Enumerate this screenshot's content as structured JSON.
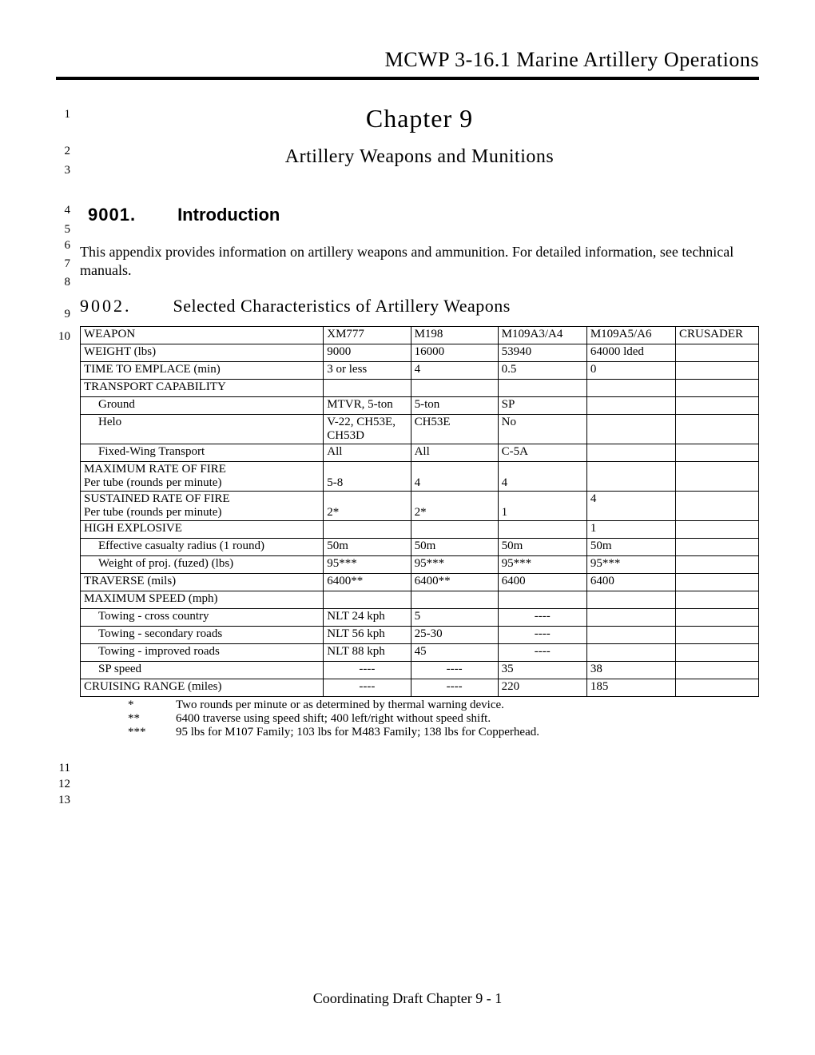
{
  "header": "MCWP 3-16.1 Marine Artillery Operations",
  "chapter_title": "Chapter 9",
  "chapter_subtitle": "Artillery Weapons and Munitions",
  "section1": {
    "num": "9001.",
    "title": "Introduction"
  },
  "intro_text": "This appendix provides information on artillery weapons and ammunition.  For detailed information, see technical manuals.",
  "section2": {
    "num": "9002.",
    "title": "Selected Characteristics of Artillery Weapons"
  },
  "line_nums": [
    "1",
    "2",
    "3",
    "4",
    "5",
    "6",
    "7",
    "8",
    "9",
    "10",
    "11",
    "12",
    "13"
  ],
  "table": {
    "columns": [
      "WEAPON",
      "XM777",
      "M198",
      "M109A3/A4",
      "M109A5/A6",
      "CRUSADER"
    ],
    "rows": [
      {
        "label": "WEIGHT (lbs)",
        "cells": [
          "9000",
          "16000",
          "53940",
          "64000 lded",
          ""
        ]
      },
      {
        "label": "TIME TO EMPLACE (min)",
        "cells": [
          "3 or less",
          "4",
          "0.5",
          "0",
          ""
        ]
      },
      {
        "label": "TRANSPORT CAPABILITY",
        "cells": [
          "",
          "",
          "",
          "",
          ""
        ]
      },
      {
        "label": "Ground",
        "indent": 1,
        "cells": [
          "MTVR, 5-ton",
          "5-ton",
          "SP",
          "",
          ""
        ]
      },
      {
        "label": "Helo",
        "indent": 1,
        "cells": [
          "V-22, CH53E, CH53D",
          "CH53E",
          "No",
          "",
          ""
        ]
      },
      {
        "label": "Fixed-Wing Transport",
        "indent": 1,
        "cells": [
          "All",
          "All",
          "C-5A",
          "",
          ""
        ]
      },
      {
        "label": "MAXIMUM RATE OF FIRE\nPer tube (rounds per minute)",
        "cells": [
          "\n5-8",
          "\n4",
          "\n4",
          "",
          ""
        ]
      },
      {
        "label": "SUSTAINED RATE OF FIRE\nPer tube (rounds per minute)",
        "cells": [
          "\n2*",
          "\n2*",
          "\n1",
          "4",
          ""
        ]
      },
      {
        "label": "HIGH EXPLOSIVE",
        "cells": [
          "",
          "",
          "",
          "1",
          ""
        ]
      },
      {
        "label": "Effective casualty radius (1 round)",
        "indent": 1,
        "cells": [
          "50m",
          "50m",
          "50m",
          "50m",
          ""
        ]
      },
      {
        "label": "Weight of proj. (fuzed) (lbs)",
        "indent": 1,
        "cells": [
          "95***",
          "95***",
          "95***",
          "95***",
          ""
        ]
      },
      {
        "label": "TRAVERSE (mils)",
        "cells": [
          "6400**",
          "6400**",
          "6400",
          "6400",
          ""
        ]
      },
      {
        "label": "MAXIMUM SPEED (mph)",
        "cells": [
          "",
          "",
          "",
          "",
          ""
        ]
      },
      {
        "label": "Towing - cross country",
        "indent": 1,
        "cells": [
          "NLT 24 kph",
          "5",
          "----",
          "",
          ""
        ],
        "dash_cols": [
          2
        ]
      },
      {
        "label": "Towing - secondary roads",
        "indent": 1,
        "cells": [
          "NLT 56 kph",
          "25-30",
          "----",
          "",
          ""
        ],
        "dash_cols": [
          2
        ]
      },
      {
        "label": "Towing - improved roads",
        "indent": 1,
        "cells": [
          "NLT 88 kph",
          "45",
          "----",
          "",
          ""
        ],
        "dash_cols": [
          2
        ]
      },
      {
        "label": "SP speed",
        "indent": 1,
        "cells": [
          "----",
          "----",
          "35",
          "38",
          ""
        ],
        "dash_cols": [
          0,
          1
        ]
      },
      {
        "label": "CRUISING RANGE (miles)",
        "cells": [
          "----",
          "----",
          "220",
          "185",
          ""
        ],
        "dash_cols": [
          0,
          1
        ]
      }
    ]
  },
  "footnotes": [
    {
      "sym": "*",
      "text": "Two rounds per minute or as determined by thermal warning device."
    },
    {
      "sym": "**",
      "text": "6400 traverse using speed shift; 400 left/right without speed shift."
    },
    {
      "sym": "***",
      "text": "95 lbs for M107 Family; 103 lbs for M483 Family; 138 lbs for Copperhead."
    }
  ],
  "footer": "Coordinating Draft Chapter 9 - 1"
}
